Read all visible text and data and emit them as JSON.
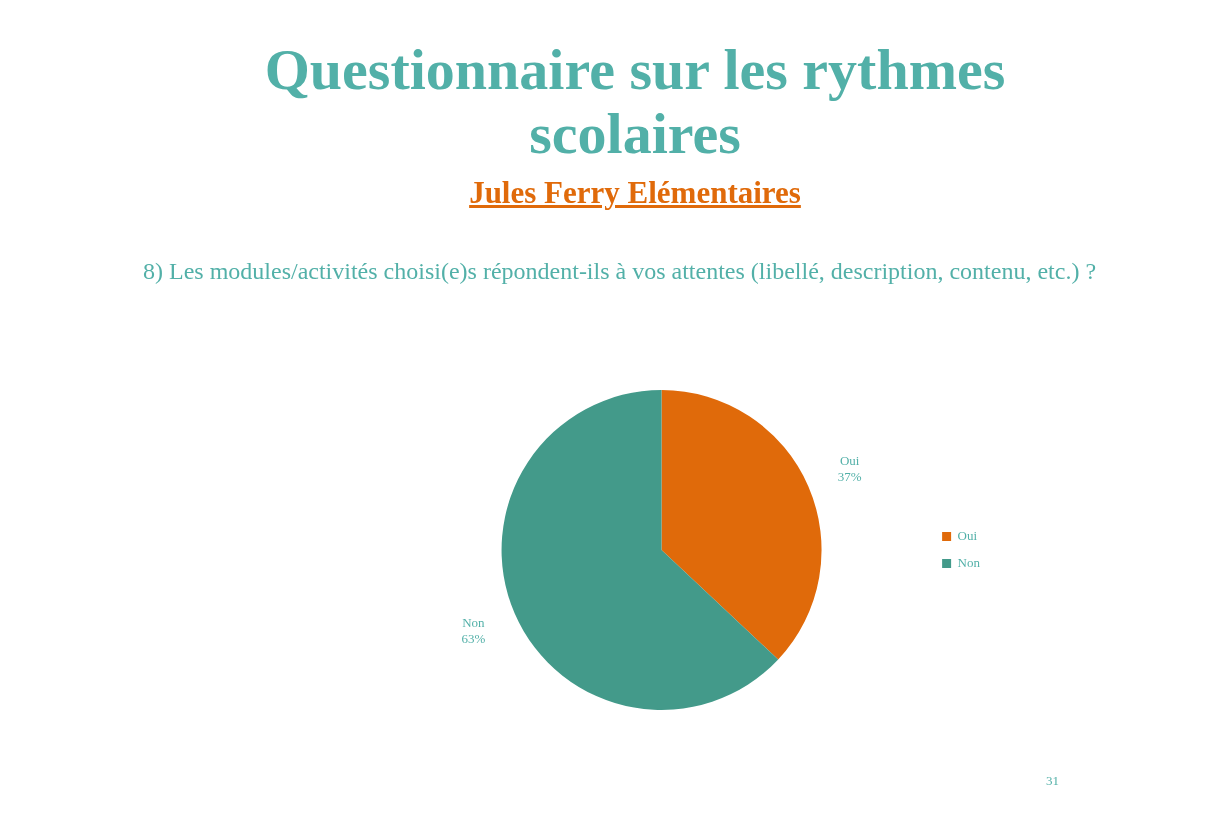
{
  "chart_data": {
    "type": "pie",
    "title": "Questionnaire sur les rythmes scolaires",
    "subtitle": "Jules Ferry Elémentaires",
    "categories": [
      "Oui",
      "Non"
    ],
    "values": [
      37,
      63
    ],
    "colors": [
      "#e06a0a",
      "#439a8a"
    ],
    "value_labels": [
      "37%",
      "63%"
    ],
    "legend": "right",
    "annotations": [
      "8) Les modules/activités choisi(e)s répondent-ils à vos attentes (libellé, description, contenu, etc.) ?",
      "31"
    ]
  }
}
